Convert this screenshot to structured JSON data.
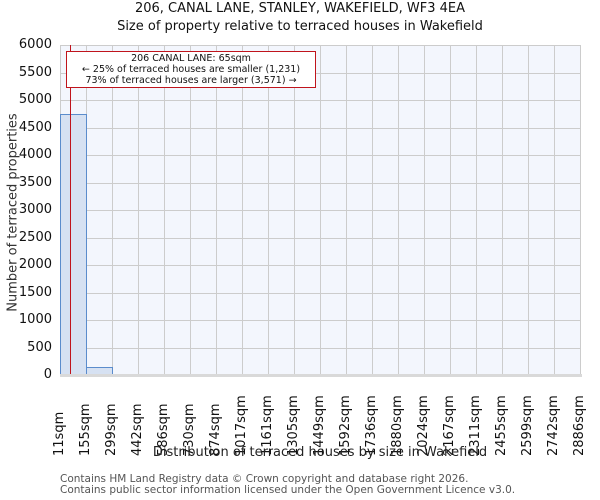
{
  "header": {
    "title": "206, CANAL LANE, STANLEY, WAKEFIELD, WF3 4EA",
    "subtitle": "Size of property relative to terraced houses in Wakefield"
  },
  "annotation": {
    "line1": "206 CANAL LANE: 65sqm",
    "line2": "← 25% of terraced houses are smaller (1,231)",
    "line3": "73% of terraced houses are larger (3,571) →",
    "marker_value_sqm": 65,
    "color": "#c0141c"
  },
  "axes": {
    "ylabel": "Number of terraced properties",
    "xlabel": "Distribution of terraced houses by size in Wakefield",
    "yticks": [
      "0",
      "500",
      "1000",
      "1500",
      "2000",
      "2500",
      "3000",
      "3500",
      "4000",
      "4500",
      "5000",
      "5500",
      "6000"
    ],
    "xticks": [
      "11sqm",
      "155sqm",
      "299sqm",
      "442sqm",
      "586sqm",
      "730sqm",
      "874sqm",
      "1017sqm",
      "1161sqm",
      "1305sqm",
      "1449sqm",
      "1592sqm",
      "1736sqm",
      "1880sqm",
      "2024sqm",
      "2167sqm",
      "2311sqm",
      "2455sqm",
      "2599sqm",
      "2742sqm",
      "2886sqm"
    ]
  },
  "footer": {
    "line1": "Contains HM Land Registry data © Crown copyright and database right 2026.",
    "line2": "Contains public sector information licensed under the Open Government Licence v3.0."
  },
  "colors": {
    "bar_fill": "#d6e1f2",
    "bar_edge": "#5b8ccc",
    "plot_bg": "#f3f6fd",
    "grid": "#cccccc",
    "marker": "#c0141c"
  },
  "chart_data": {
    "type": "bar",
    "title": "206, CANAL LANE, STANLEY, WAKEFIELD, WF3 4EA — Size of property relative to terraced houses in Wakefield",
    "xlabel": "Distribution of terraced houses by size in Wakefield",
    "ylabel": "Number of terraced properties",
    "categories": [
      "11sqm",
      "155sqm",
      "299sqm",
      "442sqm",
      "586sqm",
      "730sqm",
      "874sqm",
      "1017sqm",
      "1161sqm",
      "1305sqm",
      "1449sqm",
      "1592sqm",
      "1736sqm",
      "1880sqm",
      "2024sqm",
      "2167sqm",
      "2311sqm",
      "2455sqm",
      "2599sqm",
      "2742sqm"
    ],
    "bin_edges": [
      11,
      155,
      299,
      442,
      586,
      730,
      874,
      1017,
      1161,
      1305,
      1449,
      1592,
      1736,
      1880,
      2024,
      2167,
      2311,
      2455,
      2599,
      2742,
      2886
    ],
    "values": [
      4740,
      145,
      0,
      0,
      0,
      0,
      0,
      0,
      0,
      0,
      0,
      0,
      0,
      0,
      0,
      0,
      0,
      0,
      0,
      0
    ],
    "ylim": [
      0,
      6000
    ],
    "grid": true,
    "annotations": [
      {
        "type": "vline",
        "x": 65,
        "label": "206 CANAL LANE: 65sqm"
      },
      {
        "text": "← 25% of terraced houses are smaller (1,231)"
      },
      {
        "text": "73% of terraced houses are larger (3,571) →"
      }
    ]
  }
}
